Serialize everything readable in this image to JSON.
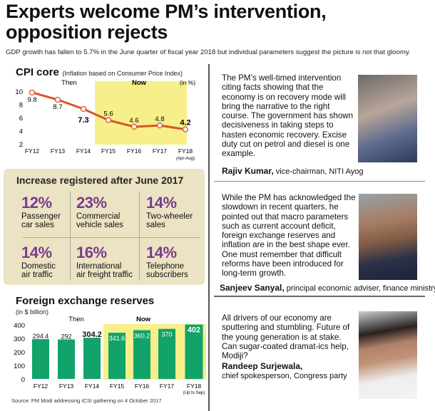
{
  "headline": "Experts welcome PM’s intervention, opposition rejects",
  "subtitle": "GDP growth has fallen to 5.7% in the June quarter of fiscal year 2018 but individual parameters suggest the picture is not that gloomy.",
  "colors": {
    "highlight": "#f7f08a",
    "cpi_line": "#d9532b",
    "bar": "#12a36a",
    "purple": "#7a3c8c",
    "box": "#ebe3c3"
  },
  "chart_data": [
    {
      "type": "line",
      "title": "CPI core",
      "subtitle": "(Inflation based on Consumer Price Index)",
      "unit": "(in %)",
      "categories": [
        "FY12",
        "FY13",
        "FY14",
        "FY15",
        "FY16",
        "FY17",
        "FY18"
      ],
      "category_notes": {
        "FY18": "(Apr-Aug)"
      },
      "values": [
        9.8,
        8.7,
        7.3,
        5.6,
        4.6,
        4.8,
        4.2
      ],
      "value_labels": [
        "9.8",
        "8.7",
        "7.3",
        "5.6",
        "4.6",
        "4.8",
        "4.2"
      ],
      "yticks": [
        "2",
        "4",
        "6",
        "8",
        "10"
      ],
      "ylim": [
        2,
        10
      ],
      "period_labels": {
        "then": "Then",
        "now": "Now"
      },
      "highlight_range": [
        "FY15",
        "FY18"
      ]
    },
    {
      "type": "bar",
      "title": "Foreign exchange reserves",
      "unit": "(in $ billion)",
      "categories": [
        "FY12",
        "FY13",
        "FY14",
        "FY15",
        "FY16",
        "FY17",
        "FY18"
      ],
      "category_notes": {
        "FY18": "(Up to Sep)"
      },
      "values": [
        294.4,
        292,
        304.2,
        341.6,
        360.2,
        370,
        402
      ],
      "value_labels": [
        "294.4",
        "292",
        "304.2",
        "341.6",
        "360.2",
        "370",
        "402"
      ],
      "yticks": [
        "0",
        "100",
        "200",
        "300",
        "400"
      ],
      "ylim": [
        0,
        400
      ],
      "period_labels": {
        "then": "Then",
        "now": "Now"
      },
      "highlight_range": [
        "FY15",
        "FY18"
      ]
    }
  ],
  "increase": {
    "title": "Increase registered after June 2017",
    "items": [
      {
        "pct": "12%",
        "label1": "Passenger",
        "label2": "car sales"
      },
      {
        "pct": "23%",
        "label1": "Commercial",
        "label2": "vehicle sales"
      },
      {
        "pct": "14%",
        "label1": "Two-wheeler",
        "label2": "sales"
      },
      {
        "pct": "14%",
        "label1": "Domestic",
        "label2": "air traffic"
      },
      {
        "pct": "16%",
        "label1": "International",
        "label2": "air freight traffic"
      },
      {
        "pct": "14%",
        "label1": "Telephone",
        "label2": "subscribers"
      }
    ]
  },
  "source": "Source: PM Modi addressing ICSI gathering on 4 October 2017",
  "quotes": [
    {
      "text": "The PM’s well-timed intervention citing facts showing that the economy is on recovery mode will bring the narrative to the right course. The government has shown decisiveness in taking steps to hasten economic recovery. Excise duty cut on petrol and diesel is one example.",
      "name": "Rajiv Kumar,",
      "role": "vice-chairman, NITI Ayog"
    },
    {
      "text": "While the PM has acknowledged the slowdown in recent quarters, he pointed out that macro parameters such as current account deficit, foreign exchange reserves and inflation are in the best shape ever. One must remember that difficult reforms have been introduced for long-term growth.",
      "name": "Sanjeev Sanyal,",
      "role": "principal economic adviser, finance ministry"
    },
    {
      "text": "All drivers of our economy are sputtering and stumbling. Future of the young generation is at stake. Can sugar-coated dramat-ics help, Modiji?",
      "name": "Randeep Surjewala,",
      "role": "chief spokesperson, Congress party"
    }
  ]
}
